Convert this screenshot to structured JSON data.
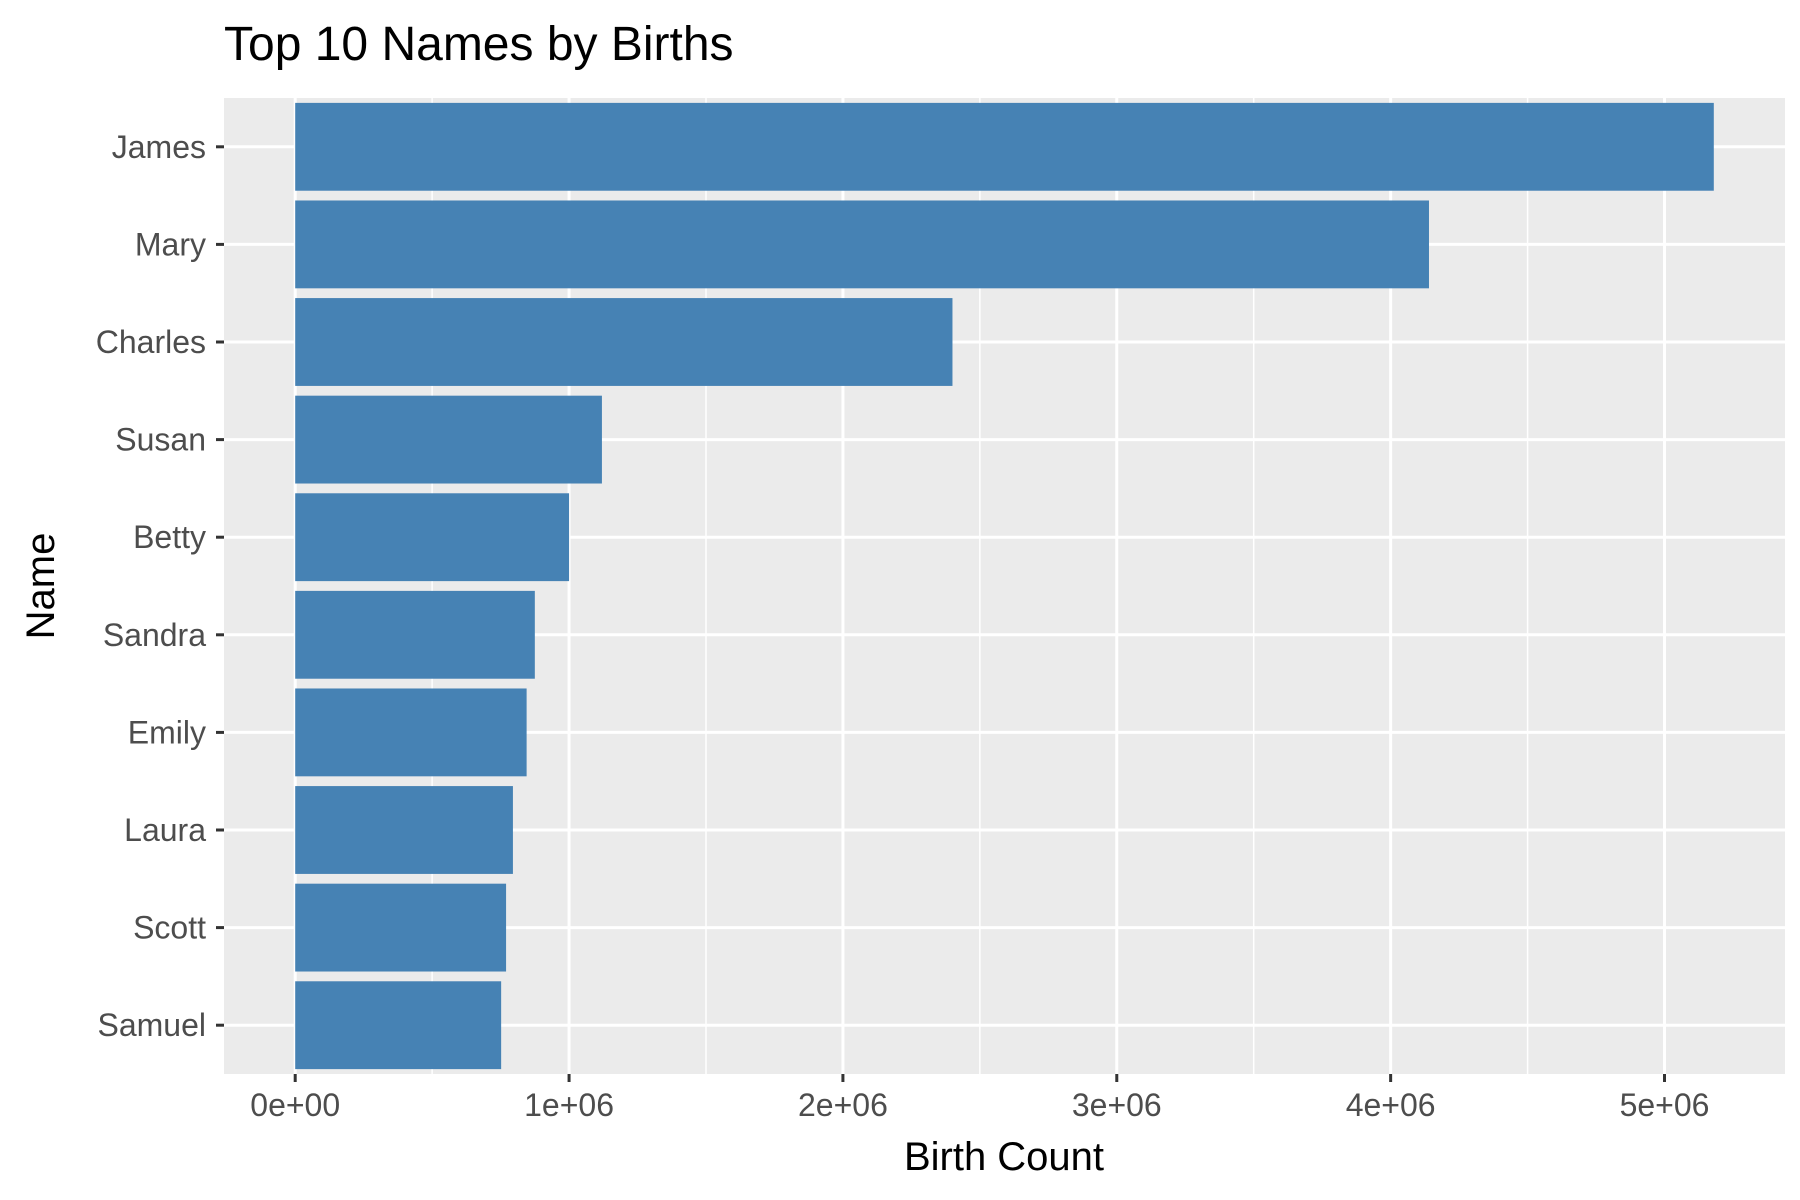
{
  "chart_data": {
    "type": "bar",
    "orientation": "horizontal",
    "title": "Top 10 Names by Births",
    "xlabel": "Birth Count",
    "ylabel": "Name",
    "categories": [
      "James",
      "Mary",
      "Charles",
      "Susan",
      "Betty",
      "Sandra",
      "Emily",
      "Laura",
      "Scott",
      "Samuel"
    ],
    "values": [
      5180000,
      4140000,
      2400000,
      1120000,
      1000000,
      875000,
      845000,
      795000,
      770000,
      752000
    ],
    "xlim": [
      -260000,
      5440000
    ],
    "xticks": [
      0,
      1000000,
      2000000,
      3000000,
      4000000,
      5000000
    ],
    "xtick_labels": [
      "0e+00",
      "1e+06",
      "2e+06",
      "3e+06",
      "4e+06",
      "5e+06"
    ],
    "grid": true,
    "legend": "none",
    "colors": {
      "bar": "#4682b4",
      "panel": "#ebebeb",
      "grid": "#ffffff",
      "tick": "#333333",
      "tick_label": "#4d4d4d",
      "text": "#000000"
    }
  }
}
